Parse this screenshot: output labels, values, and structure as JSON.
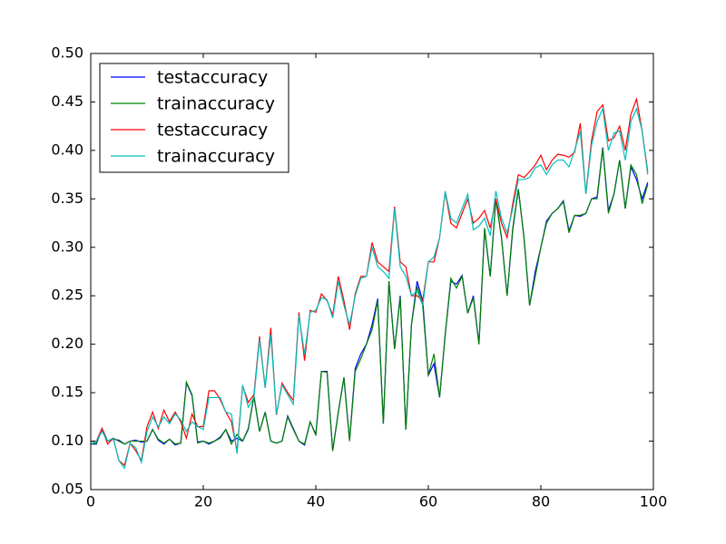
{
  "chart_data": {
    "type": "line",
    "x": [
      0,
      1,
      2,
      3,
      4,
      5,
      6,
      7,
      8,
      9,
      10,
      11,
      12,
      13,
      14,
      15,
      16,
      17,
      18,
      19,
      20,
      21,
      22,
      23,
      24,
      25,
      26,
      27,
      28,
      29,
      30,
      31,
      32,
      33,
      34,
      35,
      36,
      37,
      38,
      39,
      40,
      41,
      42,
      43,
      44,
      45,
      46,
      47,
      48,
      49,
      50,
      51,
      52,
      53,
      54,
      55,
      56,
      57,
      58,
      59,
      60,
      61,
      62,
      63,
      64,
      65,
      66,
      67,
      68,
      69,
      70,
      71,
      72,
      73,
      74,
      75,
      76,
      77,
      78,
      79,
      80,
      81,
      82,
      83,
      84,
      85,
      86,
      87,
      88,
      89,
      90,
      91,
      92,
      93,
      94,
      95,
      96,
      97,
      98,
      99
    ],
    "series": [
      {
        "name": "testaccuracy",
        "color": "#0000ff",
        "values": [
          0.097,
          0.097,
          0.113,
          0.1,
          0.102,
          0.101,
          0.097,
          0.1,
          0.101,
          0.099,
          0.1,
          0.112,
          0.101,
          0.097,
          0.102,
          0.096,
          0.098,
          0.16,
          0.147,
          0.099,
          0.1,
          0.097,
          0.1,
          0.104,
          0.112,
          0.1,
          0.103,
          0.1,
          0.113,
          0.146,
          0.11,
          0.13,
          0.1,
          0.098,
          0.1,
          0.126,
          0.113,
          0.1,
          0.096,
          0.12,
          0.107,
          0.172,
          0.172,
          0.09,
          0.13,
          0.165,
          0.101,
          0.175,
          0.19,
          0.2,
          0.22,
          0.247,
          0.118,
          0.265,
          0.195,
          0.25,
          0.112,
          0.22,
          0.265,
          0.245,
          0.168,
          0.18,
          0.145,
          0.21,
          0.265,
          0.262,
          0.271,
          0.232,
          0.25,
          0.2,
          0.318,
          0.27,
          0.35,
          0.31,
          0.25,
          0.318,
          0.36,
          0.31,
          0.24,
          0.275,
          0.3,
          0.327,
          0.335,
          0.34,
          0.348,
          0.317,
          0.333,
          0.332,
          0.335,
          0.35,
          0.352,
          0.403,
          0.338,
          0.355,
          0.39,
          0.34,
          0.383,
          0.37,
          0.35,
          0.367
        ]
      },
      {
        "name": "trainaccuracy",
        "color": "#008000",
        "values": [
          0.097,
          0.098,
          0.112,
          0.1,
          0.103,
          0.1,
          0.097,
          0.1,
          0.1,
          0.1,
          0.1,
          0.112,
          0.102,
          0.098,
          0.102,
          0.097,
          0.098,
          0.161,
          0.148,
          0.098,
          0.1,
          0.098,
          0.1,
          0.103,
          0.112,
          0.097,
          0.107,
          0.1,
          0.112,
          0.147,
          0.11,
          0.13,
          0.1,
          0.098,
          0.1,
          0.125,
          0.112,
          0.1,
          0.097,
          0.12,
          0.106,
          0.172,
          0.171,
          0.09,
          0.13,
          0.166,
          0.1,
          0.172,
          0.185,
          0.2,
          0.215,
          0.245,
          0.118,
          0.265,
          0.195,
          0.248,
          0.112,
          0.22,
          0.26,
          0.24,
          0.168,
          0.19,
          0.145,
          0.21,
          0.268,
          0.258,
          0.27,
          0.232,
          0.248,
          0.2,
          0.32,
          0.27,
          0.35,
          0.31,
          0.25,
          0.32,
          0.36,
          0.31,
          0.24,
          0.27,
          0.3,
          0.325,
          0.335,
          0.34,
          0.347,
          0.315,
          0.333,
          0.333,
          0.335,
          0.35,
          0.35,
          0.402,
          0.335,
          0.355,
          0.39,
          0.34,
          0.385,
          0.375,
          0.345,
          0.365
        ]
      },
      {
        "name": "testaccuracy",
        "color": "#ff0000",
        "values": [
          0.1,
          0.1,
          0.113,
          0.097,
          0.103,
          0.08,
          0.075,
          0.098,
          0.09,
          0.08,
          0.115,
          0.13,
          0.113,
          0.132,
          0.12,
          0.13,
          0.12,
          0.103,
          0.128,
          0.115,
          0.115,
          0.152,
          0.152,
          0.143,
          0.13,
          0.12,
          0.09,
          0.157,
          0.14,
          0.148,
          0.208,
          0.155,
          0.217,
          0.127,
          0.16,
          0.15,
          0.142,
          0.233,
          0.183,
          0.235,
          0.233,
          0.252,
          0.245,
          0.23,
          0.27,
          0.245,
          0.215,
          0.252,
          0.27,
          0.27,
          0.305,
          0.285,
          0.28,
          0.275,
          0.342,
          0.285,
          0.28,
          0.25,
          0.25,
          0.245,
          0.285,
          0.285,
          0.31,
          0.357,
          0.325,
          0.32,
          0.335,
          0.35,
          0.325,
          0.33,
          0.338,
          0.32,
          0.35,
          0.325,
          0.31,
          0.345,
          0.375,
          0.372,
          0.378,
          0.385,
          0.395,
          0.38,
          0.39,
          0.396,
          0.395,
          0.393,
          0.398,
          0.428,
          0.355,
          0.41,
          0.44,
          0.447,
          0.41,
          0.413,
          0.425,
          0.4,
          0.437,
          0.453,
          0.42,
          0.378
        ]
      },
      {
        "name": "trainaccuracy",
        "color": "#00bfbf",
        "values": [
          0.097,
          0.1,
          0.11,
          0.1,
          0.103,
          0.08,
          0.072,
          0.098,
          0.093,
          0.078,
          0.11,
          0.125,
          0.115,
          0.125,
          0.118,
          0.128,
          0.122,
          0.11,
          0.12,
          0.115,
          0.112,
          0.145,
          0.145,
          0.145,
          0.13,
          0.128,
          0.087,
          0.158,
          0.135,
          0.145,
          0.205,
          0.155,
          0.21,
          0.128,
          0.158,
          0.148,
          0.138,
          0.23,
          0.19,
          0.233,
          0.235,
          0.248,
          0.246,
          0.227,
          0.265,
          0.24,
          0.22,
          0.25,
          0.268,
          0.27,
          0.3,
          0.28,
          0.275,
          0.268,
          0.34,
          0.28,
          0.27,
          0.25,
          0.255,
          0.24,
          0.285,
          0.29,
          0.31,
          0.358,
          0.33,
          0.325,
          0.34,
          0.355,
          0.318,
          0.322,
          0.33,
          0.312,
          0.358,
          0.33,
          0.315,
          0.34,
          0.37,
          0.37,
          0.372,
          0.382,
          0.385,
          0.375,
          0.385,
          0.39,
          0.39,
          0.383,
          0.4,
          0.42,
          0.355,
          0.405,
          0.43,
          0.443,
          0.4,
          0.418,
          0.42,
          0.39,
          0.43,
          0.443,
          0.42,
          0.375
        ]
      }
    ],
    "xlim": [
      0,
      100
    ],
    "xticks": [
      0,
      20,
      40,
      60,
      80,
      100
    ],
    "ylim": [
      0.05,
      0.5
    ],
    "yticks": [
      0.05,
      {
        "value": 0.1,
        "label": "0.10"
      },
      0.15,
      {
        "value": 0.2,
        "label": "0.20"
      },
      0.25,
      {
        "value": 0.3,
        "label": "0.30"
      },
      0.35,
      {
        "value": 0.4,
        "label": "0.40"
      },
      0.45,
      {
        "value": 0.5,
        "label": "0.50"
      }
    ],
    "legend": "upper left"
  }
}
